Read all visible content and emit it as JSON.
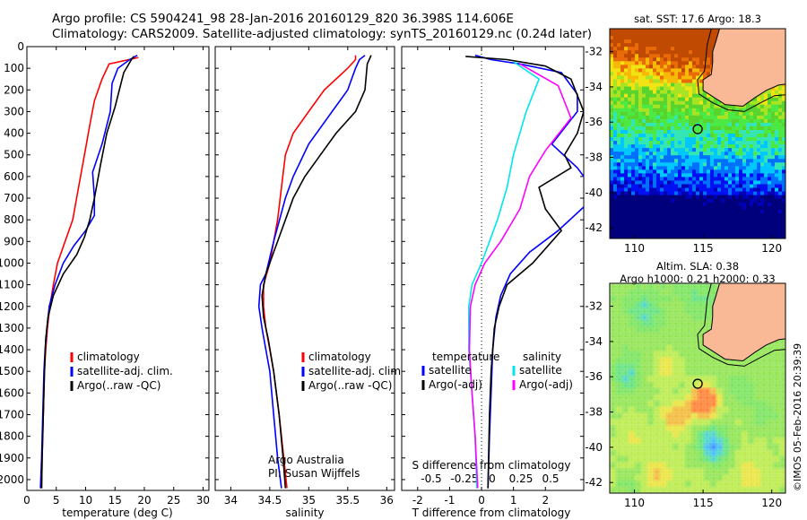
{
  "header": {
    "line1": "Argo profile: CS 5904241_98 28-Jan-2016 20160129_820 36.398S 114.606E",
    "line2": "Climatology: CARS2009. Satellite-adjusted climatology: synTS_20160129.nc (0.24d later)"
  },
  "colors": {
    "climatology": "#ff0000",
    "satellite": "#0000ff",
    "argo": "#000000",
    "sat_salinity": "#00e5ee",
    "argo_salinity": "#ff00ff",
    "land": "#f9b996"
  },
  "chart_data": [
    {
      "type": "line",
      "xlabel": "temperature (deg C)",
      "xlim": [
        0,
        31
      ],
      "ylim": [
        0,
        2050
      ],
      "x_ticks": [
        0,
        5,
        10,
        15,
        20,
        25,
        30
      ],
      "y_ticks": [
        0,
        100,
        200,
        300,
        400,
        500,
        600,
        700,
        800,
        900,
        1000,
        1100,
        1200,
        1300,
        1400,
        1500,
        1600,
        1700,
        1800,
        1900,
        2000
      ],
      "legend": [
        "climatology",
        "satellite-adj. clim.",
        "Argo(..raw -QC)"
      ],
      "series": [
        {
          "name": "climatology",
          "color": "#ff0000",
          "points": [
            [
              19.0,
              50
            ],
            [
              14.0,
              80
            ],
            [
              12.8,
              150
            ],
            [
              11.5,
              250
            ],
            [
              10.8,
              350
            ],
            [
              9.8,
              500
            ],
            [
              8.8,
              650
            ],
            [
              7.8,
              800
            ],
            [
              6.5,
              900
            ],
            [
              5.2,
              1000
            ],
            [
              4.5,
              1100
            ],
            [
              3.9,
              1200
            ],
            [
              3.5,
              1300
            ],
            [
              3.2,
              1400
            ],
            [
              3.0,
              1500
            ],
            [
              2.8,
              1700
            ],
            [
              2.6,
              1900
            ],
            [
              2.5,
              2040
            ]
          ]
        },
        {
          "name": "satellite-adj. clim.",
          "color": "#0000ff",
          "points": [
            [
              18.8,
              40
            ],
            [
              17.5,
              60
            ],
            [
              15.5,
              100
            ],
            [
              14.5,
              170
            ],
            [
              14.2,
              300
            ],
            [
              12.8,
              450
            ],
            [
              11.2,
              580
            ],
            [
              11.5,
              700
            ],
            [
              11.5,
              780
            ],
            [
              10.0,
              850
            ],
            [
              8.0,
              920
            ],
            [
              6.2,
              1000
            ],
            [
              4.8,
              1100
            ],
            [
              3.8,
              1200
            ],
            [
              3.4,
              1300
            ],
            [
              3.1,
              1400
            ],
            [
              2.9,
              1500
            ],
            [
              2.7,
              1700
            ],
            [
              2.5,
              1900
            ],
            [
              2.3,
              2040
            ]
          ]
        },
        {
          "name": "Argo(..raw -QC)",
          "color": "#000000",
          "points": [
            [
              18.2,
              45
            ],
            [
              17.8,
              60
            ],
            [
              16.5,
              120
            ],
            [
              15.0,
              280
            ],
            [
              13.6,
              400
            ],
            [
              12.5,
              550
            ],
            [
              11.5,
              700
            ],
            [
              10.7,
              800
            ],
            [
              9.8,
              880
            ],
            [
              8.5,
              960
            ],
            [
              6.2,
              1050
            ],
            [
              4.5,
              1150
            ],
            [
              3.6,
              1250
            ],
            [
              3.2,
              1350
            ],
            [
              3.0,
              1500
            ],
            [
              2.8,
              1700
            ],
            [
              2.6,
              1900
            ],
            [
              2.5,
              2040
            ]
          ]
        }
      ]
    },
    {
      "type": "line",
      "xlabel": "salinity",
      "xlim": [
        33.8,
        36.1
      ],
      "ylim": [
        0,
        2050
      ],
      "x_ticks": [
        34,
        34.5,
        35,
        35.5,
        36
      ],
      "legend": [
        "climatology",
        "satellite-adj. clim.",
        "Argo(..raw -QC)"
      ],
      "annotation": [
        "Argo Australia",
        "PI: Susan Wijffels"
      ],
      "series": [
        {
          "name": "climatology",
          "color": "#ff0000",
          "points": [
            [
              35.6,
              40
            ],
            [
              35.6,
              60
            ],
            [
              35.5,
              100
            ],
            [
              35.2,
              200
            ],
            [
              35.0,
              300
            ],
            [
              34.8,
              400
            ],
            [
              34.7,
              500
            ],
            [
              34.65,
              650
            ],
            [
              34.6,
              800
            ],
            [
              34.5,
              1000
            ],
            [
              34.42,
              1100
            ],
            [
              34.42,
              1200
            ],
            [
              34.45,
              1300
            ],
            [
              34.5,
              1400
            ],
            [
              34.55,
              1500
            ],
            [
              34.62,
              1700
            ],
            [
              34.68,
              1900
            ],
            [
              34.72,
              2040
            ]
          ]
        },
        {
          "name": "satellite-adj. clim.",
          "color": "#0000ff",
          "points": [
            [
              35.72,
              40
            ],
            [
              35.65,
              60
            ],
            [
              35.6,
              100
            ],
            [
              35.5,
              200
            ],
            [
              35.3,
              300
            ],
            [
              35.0,
              450
            ],
            [
              34.8,
              600
            ],
            [
              34.7,
              700
            ],
            [
              34.55,
              900
            ],
            [
              34.45,
              1050
            ],
            [
              34.38,
              1100
            ],
            [
              34.36,
              1200
            ],
            [
              34.4,
              1300
            ],
            [
              34.45,
              1400
            ],
            [
              34.5,
              1500
            ],
            [
              34.55,
              1700
            ],
            [
              34.6,
              1900
            ],
            [
              34.65,
              2040
            ]
          ]
        },
        {
          "name": "Argo(..raw -QC)",
          "color": "#000000",
          "points": [
            [
              35.8,
              40
            ],
            [
              35.75,
              80
            ],
            [
              35.72,
              200
            ],
            [
              35.6,
              300
            ],
            [
              35.35,
              400
            ],
            [
              35.15,
              500
            ],
            [
              34.95,
              600
            ],
            [
              34.8,
              700
            ],
            [
              34.7,
              800
            ],
            [
              34.55,
              950
            ],
            [
              34.45,
              1050
            ],
            [
              34.4,
              1150
            ],
            [
              34.42,
              1250
            ],
            [
              34.48,
              1350
            ],
            [
              34.55,
              1500
            ],
            [
              34.62,
              1700
            ],
            [
              34.67,
              1900
            ],
            [
              34.7,
              2040
            ]
          ]
        }
      ]
    },
    {
      "type": "line",
      "xlabel": "T difference from climatology",
      "xlabel_top": "S difference from climatology",
      "xlim": [
        -2.5,
        3.2
      ],
      "ylim": [
        0,
        2050
      ],
      "x_ticks": [
        -2,
        -1,
        0,
        1,
        2
      ],
      "s_ticks": [
        -0.5,
        -0.25,
        0,
        0.25,
        0.5
      ],
      "legend_titles": [
        "temperature",
        "salinity"
      ],
      "legend": [
        "satellite",
        "Argo(-adj)",
        "satellite",
        "Argo(-adj)"
      ],
      "series": [
        {
          "name": "satellite",
          "group": "temperature",
          "color": "#0000ff",
          "points": [
            [
              -0.2,
              40
            ],
            [
              0.3,
              60
            ],
            [
              1.2,
              80
            ],
            [
              2.5,
              120
            ],
            [
              3.0,
              220
            ],
            [
              3.0,
              300
            ],
            [
              2.2,
              450
            ],
            [
              3.0,
              560
            ],
            [
              3.3,
              620
            ],
            [
              3.5,
              700
            ],
            [
              2.4,
              850
            ],
            [
              1.5,
              950
            ],
            [
              0.9,
              1050
            ],
            [
              0.6,
              1150
            ],
            [
              0.45,
              1250
            ],
            [
              0.35,
              1400
            ],
            [
              0.3,
              1600
            ],
            [
              0.25,
              1800
            ],
            [
              0.2,
              2040
            ]
          ]
        },
        {
          "name": "Argo(-adj)",
          "group": "temperature",
          "color": "#000000",
          "points": [
            [
              -0.5,
              45
            ],
            [
              0.8,
              60
            ],
            [
              2.0,
              90
            ],
            [
              2.8,
              150
            ],
            [
              3.2,
              300
            ],
            [
              3.0,
              400
            ],
            [
              2.6,
              500
            ],
            [
              2.8,
              560
            ],
            [
              1.8,
              650
            ],
            [
              2.0,
              750
            ],
            [
              2.5,
              850
            ],
            [
              1.6,
              1000
            ],
            [
              0.8,
              1100
            ],
            [
              0.55,
              1200
            ],
            [
              0.4,
              1300
            ],
            [
              0.3,
              1500
            ],
            [
              0.25,
              1700
            ],
            [
              0.22,
              1900
            ],
            [
              0.2,
              2040
            ]
          ]
        },
        {
          "name": "satellite",
          "group": "salinity",
          "color": "#00e5ee",
          "points": [
            [
              1.0,
              70
            ],
            [
              1.8,
              150
            ],
            [
              1.4,
              300
            ],
            [
              1.0,
              500
            ],
            [
              0.8,
              650
            ],
            [
              0.5,
              800
            ],
            [
              0.0,
              1000
            ],
            [
              -0.3,
              1100
            ],
            [
              -0.4,
              1200
            ],
            [
              -0.4,
              1400
            ],
            [
              -0.3,
              1600
            ],
            [
              -0.2,
              1800
            ],
            [
              -0.15,
              2040
            ]
          ]
        },
        {
          "name": "Argo(-adj)",
          "group": "salinity",
          "color": "#ff00ff",
          "points": [
            [
              1.2,
              80
            ],
            [
              2.4,
              180
            ],
            [
              2.8,
              330
            ],
            [
              2.0,
              480
            ],
            [
              1.5,
              600
            ],
            [
              1.2,
              750
            ],
            [
              0.6,
              900
            ],
            [
              0.1,
              1000
            ],
            [
              -0.2,
              1100
            ],
            [
              -0.35,
              1200
            ],
            [
              -0.38,
              1400
            ],
            [
              -0.3,
              1600
            ],
            [
              -0.2,
              1800
            ],
            [
              -0.12,
              2040
            ]
          ]
        }
      ]
    },
    {
      "type": "heatmap",
      "title": "sat. SST: 17.6 Argo: 18.3",
      "xlim": [
        108.2,
        121.0
      ],
      "ylim": [
        -42.6,
        -30.7
      ],
      "x_ticks": [
        110,
        115,
        120
      ],
      "y_ticks": [
        -32,
        -34,
        -36,
        -38,
        -40,
        -42
      ],
      "marker": [
        114.606,
        -36.398
      ]
    },
    {
      "type": "heatmap",
      "title": "Altim. SLA: 0.38",
      "subtitle": "Argo h1000: 0.21 h2000: 0.33",
      "xlim": [
        108.2,
        121.0
      ],
      "ylim": [
        -42.6,
        -30.7
      ],
      "x_ticks": [
        110,
        115,
        120
      ],
      "y_ticks": [
        -32,
        -34,
        -36,
        -38,
        -40,
        -42
      ],
      "marker": [
        114.606,
        -36.398
      ]
    }
  ],
  "footer": {
    "stamp": "©IMOS 05-Feb-2016 20:39:39"
  }
}
